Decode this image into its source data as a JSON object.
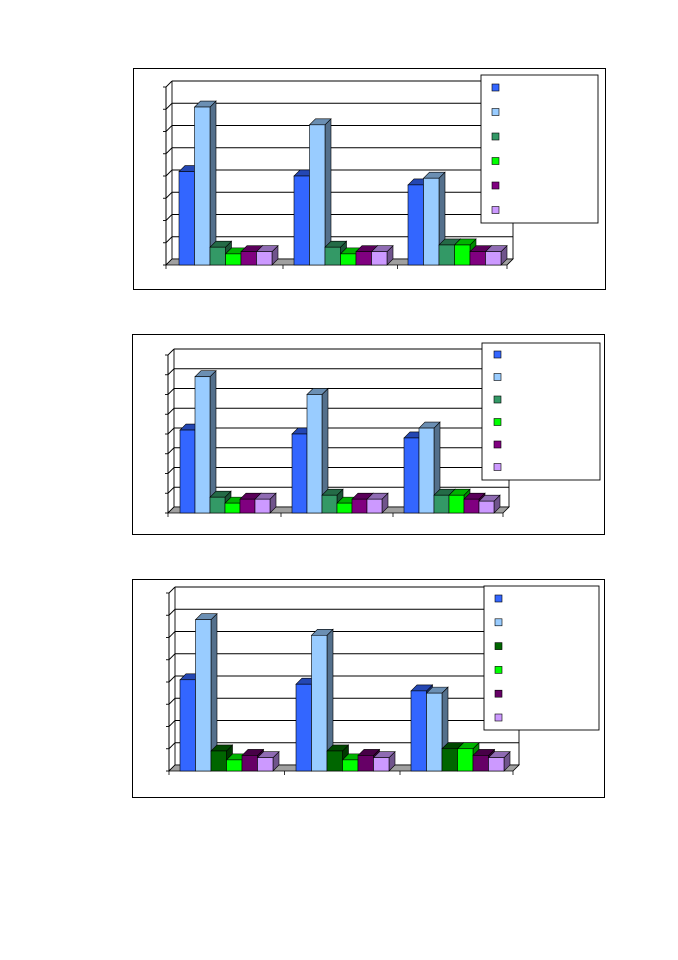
{
  "chart_data": [
    {
      "type": "bar",
      "categories": [
        "",
        "",
        ""
      ],
      "ylim": [
        0,
        8
      ],
      "grid": true,
      "legend_position": "top-right",
      "series": [
        {
          "color": "#3366ff",
          "values": [
            4.2,
            4.0,
            3.6
          ]
        },
        {
          "color": "#99ccff",
          "values": [
            7.1,
            6.3,
            3.9
          ]
        },
        {
          "color": "#339966",
          "values": [
            0.8,
            0.8,
            0.9
          ]
        },
        {
          "color": "#00ff00",
          "values": [
            0.5,
            0.5,
            0.9
          ]
        },
        {
          "color": "#800080",
          "values": [
            0.6,
            0.6,
            0.6
          ]
        },
        {
          "color": "#cc99ff",
          "values": [
            0.6,
            0.6,
            0.6
          ]
        }
      ]
    },
    {
      "type": "bar",
      "categories": [
        "",
        "",
        ""
      ],
      "ylim": [
        0,
        8
      ],
      "grid": true,
      "legend_position": "top-right",
      "series": [
        {
          "color": "#3366ff",
          "values": [
            4.2,
            4.0,
            3.8
          ]
        },
        {
          "color": "#99ccff",
          "values": [
            6.9,
            6.0,
            4.3
          ]
        },
        {
          "color": "#339966",
          "values": [
            0.8,
            0.9,
            0.9
          ]
        },
        {
          "color": "#00ff00",
          "values": [
            0.5,
            0.5,
            0.9
          ]
        },
        {
          "color": "#800080",
          "values": [
            0.7,
            0.7,
            0.7
          ]
        },
        {
          "color": "#cc99ff",
          "values": [
            0.7,
            0.7,
            0.6
          ]
        }
      ]
    },
    {
      "type": "bar",
      "categories": [
        "",
        "",
        ""
      ],
      "ylim": [
        0,
        8
      ],
      "grid": true,
      "legend_position": "top-right",
      "series": [
        {
          "color": "#3366ff",
          "values": [
            4.1,
            3.9,
            3.6
          ]
        },
        {
          "color": "#99ccff",
          "values": [
            6.8,
            6.1,
            3.5
          ]
        },
        {
          "color": "#006600",
          "values": [
            0.9,
            0.9,
            1.0
          ]
        },
        {
          "color": "#00ff00",
          "values": [
            0.5,
            0.5,
            1.0
          ]
        },
        {
          "color": "#660066",
          "values": [
            0.7,
            0.7,
            0.7
          ]
        },
        {
          "color": "#cc99ff",
          "values": [
            0.6,
            0.6,
            0.6
          ]
        }
      ]
    }
  ]
}
